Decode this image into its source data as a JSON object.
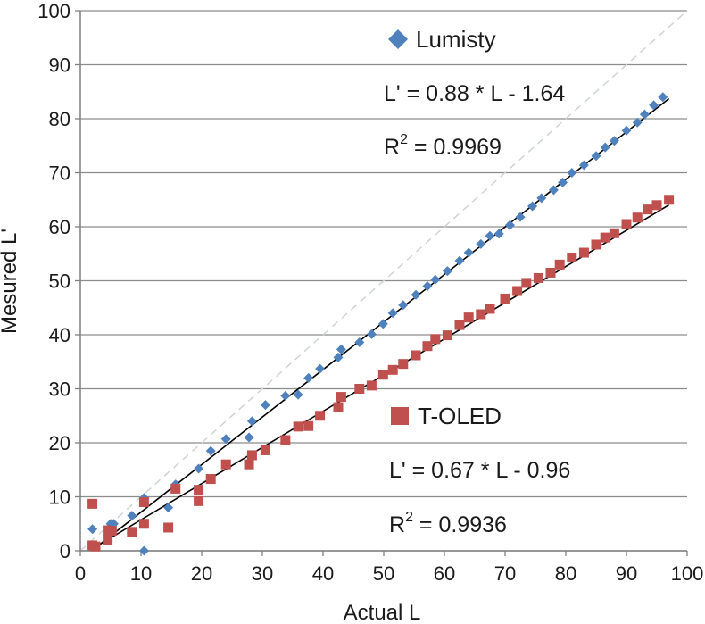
{
  "chart_data": {
    "type": "scatter",
    "xlabel": "Actual L",
    "ylabel": "Mesured L'",
    "xlim": [
      0,
      100
    ],
    "ylim": [
      0,
      100
    ],
    "x_ticks": [
      "0",
      "10",
      "20",
      "30",
      "40",
      "50",
      "60",
      "70",
      "80",
      "90",
      "100"
    ],
    "y_ticks": [
      "0",
      "10",
      "20",
      "30",
      "40",
      "50",
      "60",
      "70",
      "80",
      "90",
      "100"
    ],
    "grid": "horizontal",
    "reference_line": {
      "style": "dashed",
      "color": "#d0d4d8",
      "from": [
        0,
        0
      ],
      "to": [
        100,
        100
      ]
    },
    "series": [
      {
        "name": "Lumisty",
        "marker": "diamond",
        "color": "#4f81bd",
        "points": [
          [
            2,
            4
          ],
          [
            2,
            1
          ],
          [
            5,
            5
          ],
          [
            5.5,
            5
          ],
          [
            8.5,
            6.5
          ],
          [
            10.5,
            0
          ],
          [
            10.5,
            9.8
          ],
          [
            14.5,
            8
          ],
          [
            15.7,
            12.3
          ],
          [
            19.5,
            15.2
          ],
          [
            21.5,
            18.5
          ],
          [
            24,
            20.7
          ],
          [
            27.8,
            21
          ],
          [
            28.3,
            24
          ],
          [
            30.5,
            27
          ],
          [
            33.8,
            28.7
          ],
          [
            35.9,
            28.9
          ],
          [
            37.6,
            32
          ],
          [
            39.5,
            33.7
          ],
          [
            42.5,
            35.8
          ],
          [
            43,
            37.3
          ],
          [
            46,
            38.6
          ],
          [
            48,
            40.1
          ],
          [
            49.9,
            42
          ],
          [
            51.5,
            44
          ],
          [
            53.2,
            45.5
          ],
          [
            55.3,
            47.4
          ],
          [
            57.2,
            49
          ],
          [
            58.5,
            50.2
          ],
          [
            60.5,
            51.8
          ],
          [
            62.5,
            53.7
          ],
          [
            64,
            55.2
          ],
          [
            66,
            56.8
          ],
          [
            67.5,
            58.3
          ],
          [
            69,
            58.7
          ],
          [
            70.8,
            60.3
          ],
          [
            72.5,
            61.8
          ],
          [
            74.5,
            63.8
          ],
          [
            76,
            65.3
          ],
          [
            78,
            66.8
          ],
          [
            79.5,
            68.2
          ],
          [
            81,
            70
          ],
          [
            83,
            71.4
          ],
          [
            85,
            73.1
          ],
          [
            86.5,
            74.7
          ],
          [
            88,
            75.9
          ],
          [
            90,
            77.8
          ],
          [
            91.8,
            79.3
          ],
          [
            93,
            80.8
          ],
          [
            94.5,
            82.5
          ],
          [
            96,
            84
          ]
        ],
        "fit": {
          "slope": 0.88,
          "intercept": -1.64,
          "x_range": [
            2,
            97
          ]
        },
        "legend_label": "Lumisty",
        "equation": "L' = 0.88 * L - 1.64",
        "r2_label": "R",
        "r2_sup": "2",
        "r2_value": " = 0.9969"
      },
      {
        "name": "T-OLED",
        "marker": "square",
        "color": "#c0504d",
        "points": [
          [
            2,
            8.7
          ],
          [
            2,
            1
          ],
          [
            2.5,
            0.8
          ],
          [
            4.5,
            2
          ],
          [
            4.5,
            3.8
          ],
          [
            5.2,
            3.7
          ],
          [
            8.5,
            3.5
          ],
          [
            10.5,
            9
          ],
          [
            10.5,
            5
          ],
          [
            14.5,
            4.3
          ],
          [
            15.7,
            11.5
          ],
          [
            19.5,
            9.2
          ],
          [
            19.5,
            11.3
          ],
          [
            21.5,
            13.3
          ],
          [
            24,
            16
          ],
          [
            27.8,
            16
          ],
          [
            28.3,
            17.7
          ],
          [
            30.5,
            18.6
          ],
          [
            33.8,
            20.5
          ],
          [
            35.9,
            23
          ],
          [
            37.6,
            23.1
          ],
          [
            39.5,
            25
          ],
          [
            42.5,
            26.6
          ],
          [
            43,
            28.5
          ],
          [
            46,
            30
          ],
          [
            48,
            30.6
          ],
          [
            49.9,
            32.6
          ],
          [
            51.5,
            33.5
          ],
          [
            53.2,
            34.6
          ],
          [
            55.3,
            36.2
          ],
          [
            57.2,
            37.9
          ],
          [
            58.5,
            39.2
          ],
          [
            60.5,
            39.9
          ],
          [
            62.5,
            41.8
          ],
          [
            64,
            43.2
          ],
          [
            66,
            43.8
          ],
          [
            67.5,
            44.8
          ],
          [
            70,
            46.7
          ],
          [
            72,
            48.1
          ],
          [
            73.5,
            49.6
          ],
          [
            75.5,
            50.5
          ],
          [
            77.5,
            51.5
          ],
          [
            79,
            53
          ],
          [
            81,
            54.3
          ],
          [
            83,
            55.2
          ],
          [
            85,
            56.7
          ],
          [
            86.5,
            58
          ],
          [
            88,
            58.8
          ],
          [
            90,
            60.5
          ],
          [
            91.8,
            61.7
          ],
          [
            93.5,
            63.2
          ],
          [
            95,
            64
          ],
          [
            97,
            65
          ]
        ],
        "fit": {
          "slope": 0.67,
          "intercept": -0.96,
          "x_range": [
            2,
            97
          ]
        },
        "legend_label": "T-OLED",
        "equation": "L' = 0.67 * L - 0.96",
        "r2_label": "R",
        "r2_sup": "2",
        "r2_value": " = 0.9936"
      }
    ]
  }
}
